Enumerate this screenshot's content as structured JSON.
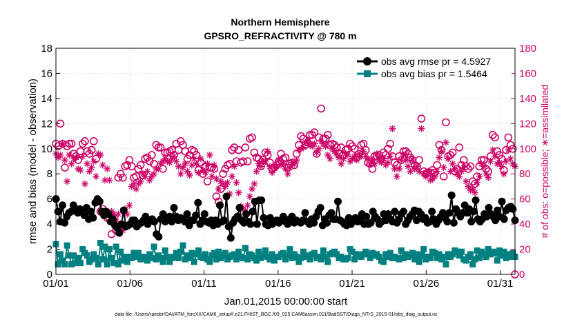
{
  "chart_data": {
    "type": "line",
    "title": "Northern Hemisphere",
    "subtitle": "GPSRO_REFRACTIVITY @ 780 m",
    "xlabel": "Jan.01,2015 00:00:00 start",
    "ylabel": "rmse and bias (model - observation)",
    "ylabel_right": "# of obs: o=possible; ∗=assimilated",
    "ylim": [
      0,
      18
    ],
    "ylim_right": [
      0,
      180
    ],
    "xlim": [
      0,
      31
    ],
    "yticks": [
      "0",
      "2",
      "4",
      "6",
      "8",
      "10",
      "12",
      "14",
      "16",
      "18"
    ],
    "yticks_right": [
      "0",
      "20",
      "40",
      "60",
      "80",
      "100",
      "120",
      "140",
      "160",
      "180"
    ],
    "xticks": [
      {
        "day": 0,
        "label": "01/01"
      },
      {
        "day": 5,
        "label": "01/06"
      },
      {
        "day": 10,
        "label": "01/11"
      },
      {
        "day": 15,
        "label": "01/16"
      },
      {
        "day": 20,
        "label": "01/21"
      },
      {
        "day": 25,
        "label": "01/26"
      },
      {
        "day": 30,
        "label": "01/31"
      }
    ],
    "grid": true,
    "legend_position": "top-right",
    "series": [
      {
        "name": "obs avg rmse pr = 4.5927",
        "color": "#000000",
        "marker": "circle",
        "axis": "left",
        "values": [
          6.0,
          5.0,
          4.2,
          5.5,
          4.1,
          4.6,
          4.9,
          5.0,
          5.5,
          5.2,
          4.9,
          5.2,
          5.0,
          4.7,
          5.3,
          4.4,
          5.0,
          4.5,
          5.7,
          6.0,
          5.8,
          5.0,
          4.7,
          5.0,
          4.8,
          4.2,
          4.4,
          3.9,
          3.7,
          3.3,
          4.0,
          5.1,
          3.8,
          3.9,
          4.0,
          4.3,
          4.3,
          3.8,
          4.0,
          4.1,
          4.3,
          4.6,
          4.0,
          4.3,
          4.4,
          4.2,
          3.2,
          3.0,
          4.4,
          4.8,
          4.2,
          4.5,
          4.6,
          4.2,
          5.3,
          4.6,
          4.3,
          4.5,
          4.4,
          4.2,
          4.8,
          3.9,
          4.3,
          4.3,
          4.7,
          5.7,
          4.0,
          4.3,
          4.8,
          4.2,
          4.1,
          4.3,
          3.9,
          4.3,
          4.0,
          5.5,
          4.2,
          4.3,
          6.2,
          3.8,
          2.9,
          4.1,
          4.4,
          4.6,
          5.3,
          4.3,
          4.1,
          4.8,
          4.2,
          4.0,
          5.0,
          5.8,
          4.0,
          5.9,
          5.9,
          4.5,
          4.0,
          3.9,
          4.5,
          4.0,
          4.2,
          4.3,
          4.1,
          4.3,
          4.6,
          4.2,
          4.0,
          4.4,
          4.6,
          4.1,
          4.3,
          4.2,
          4.1,
          4.3,
          4.9,
          4.2,
          4.0,
          4.4,
          4.1,
          4.6,
          5.0,
          5.3,
          3.9,
          4.4,
          4.1,
          4.7,
          4.9,
          4.4,
          4.4,
          5.8,
          4.3,
          4.2,
          4.0,
          3.9,
          4.5,
          4.0,
          4.4,
          4.5,
          4.2,
          4.4,
          4.8,
          4.0,
          4.6,
          4.0,
          4.1,
          5.0,
          4.6,
          4.4,
          4.0,
          4.2,
          4.8,
          4.3,
          4.8,
          4.4,
          4.2,
          5.0,
          4.1,
          4.4,
          4.8,
          5.0,
          4.0,
          4.3,
          4.6,
          4.8,
          5.1,
          4.3,
          5.0,
          4.8,
          4.4,
          4.5,
          4.1,
          4.2,
          5.0,
          4.4,
          4.0,
          4.3,
          4.6,
          4.9,
          4.5,
          4.2,
          4.9,
          6.3,
          4.1,
          5.2,
          4.9,
          4.6,
          4.9,
          5.5,
          4.9,
          5.2,
          4.2,
          5.0,
          5.9,
          4.4,
          4.2,
          4.4,
          4.8,
          4.6,
          5.3,
          4.8,
          4.6,
          4.3,
          5.1,
          4.6,
          5.8,
          4.4,
          5.1,
          5.3,
          5.4,
          5.2,
          4.3
        ]
      },
      {
        "name": "obs avg bias pr = 1.5464",
        "color": "#008080",
        "marker": "square",
        "axis": "left",
        "values": [
          2.4,
          0.8,
          1.6,
          1.1,
          0.8,
          2.3,
          1.5,
          0.8,
          1.5,
          0.9,
          1.3,
          0.9,
          2.0,
          1.7,
          1.5,
          1.0,
          1.2,
          1.6,
          1.3,
          0.8,
          2.5,
          1.2,
          2.2,
          0.8,
          2.0,
          1.3,
          0.9,
          2.2,
          0.8,
          1.8,
          1.1,
          1.4,
          1.0,
          1.4,
          1.3,
          1.7,
          1.4,
          1.7,
          1.2,
          1.4,
          1.3,
          1.1,
          1.6,
          1.3,
          2.2,
          1.2,
          1.5,
          1.3,
          1.0,
          1.9,
          1.4,
          1.0,
          1.3,
          1.4,
          1.7,
          1.3,
          1.8,
          2.3,
          1.2,
          1.5,
          1.3,
          1.7,
          1.0,
          1.6,
          1.9,
          1.4,
          1.3,
          1.6,
          1.2,
          1.0,
          1.5,
          1.7,
          1.2,
          1.8,
          1.3,
          1.5,
          1.7,
          1.2,
          1.4,
          1.5,
          1.6,
          1.2,
          1.8,
          1.4,
          1.3,
          2.1,
          1.2,
          1.6,
          1.5,
          1.3,
          1.1,
          1.8,
          1.3,
          1.5,
          1.9,
          1.4,
          1.2,
          1.6,
          1.1,
          1.4,
          1.4,
          1.6,
          1.7,
          1.2,
          1.5,
          2.0,
          1.3,
          1.6,
          1.4,
          1.0,
          1.3,
          1.8,
          1.4,
          1.5,
          1.2,
          1.6,
          1.7,
          1.3,
          1.4,
          1.2,
          1.9,
          1.4,
          1.0,
          1.6,
          1.7,
          1.8,
          1.6,
          1.3,
          1.4,
          1.2,
          1.2,
          1.3,
          2.0,
          1.8,
          1.2,
          1.6,
          1.5,
          1.4,
          1.6,
          1.8,
          1.6,
          1.3,
          1.7,
          1.5,
          1.6,
          1.4,
          1.1,
          1.0,
          1.6,
          1.4,
          1.7,
          1.3,
          1.4,
          1.3,
          1.2,
          1.9,
          1.3,
          1.6,
          1.4,
          1.5,
          1.7,
          1.2,
          1.6,
          1.0,
          1.5,
          2.0,
          1.2,
          1.4,
          1.3,
          1.8,
          1.7,
          1.3,
          1.6,
          1.2,
          1.4,
          0.8,
          1.6,
          1.4,
          1.6,
          1.9,
          1.8,
          1.5,
          1.8,
          1.2,
          1.1,
          1.4,
          1.6,
          0.8,
          1.2,
          1.9,
          1.3,
          1.8,
          1.6,
          1.4,
          2.0,
          1.6,
          1.8,
          1.7,
          1.1,
          1.9,
          1.5,
          1.8,
          1.3,
          1.6,
          1.4,
          1.7,
          1.4
        ]
      },
      {
        "name": "possible",
        "color": "#cc0066",
        "marker": "open-circle",
        "axis": "right",
        "values": [
          104,
          102,
          120,
          104,
          85,
          102,
          104,
          104,
          96,
          94,
          91,
          98,
          104,
          106,
          98,
          96,
          99,
          106,
          92,
          58,
          50,
          52,
          49,
          45,
          45,
          32,
          45,
          35,
          77,
          80,
          77,
          86,
          87,
          91,
          86,
          77,
          78,
          84,
          87,
          79,
          92,
          93,
          90,
          95,
          88,
          103,
          101,
          101,
          84,
          97,
          97,
          98,
          99,
          95,
          104,
          99,
          106,
          103,
          98,
          92,
          95,
          99,
          98,
          95,
          83,
          89,
          80,
          86,
          74,
          85,
          85,
          84,
          62,
          58,
          68,
          80,
          84,
          87,
          88,
          99,
          101,
          90,
          99,
          89,
          90,
          101,
          90,
          108,
          109,
          97,
          93,
          92,
          86,
          91,
          97,
          95,
          89,
          84,
          85,
          87,
          90,
          96,
          92,
          93,
          85,
          88,
          89,
          87,
          96,
          103,
          110,
          108,
          103,
          105,
          111,
          111,
          113,
          96,
          109,
          132,
          108,
          108,
          111,
          103,
          104,
          103,
          101,
          96,
          101,
          95,
          99,
          100,
          104,
          102,
          100,
          93,
          96,
          103,
          104,
          99,
          89,
          88,
          84,
          94,
          94,
          95,
          92,
          97,
          95,
          100,
          104,
          94,
          89,
          87,
          94,
          91,
          98,
          98,
          96,
          93,
          91,
          87,
          86,
          91,
          124,
          82,
          80,
          81,
          81,
          83,
          81,
          87,
          103,
          99,
          78,
          121,
          94,
          95,
          97,
          82,
          84,
          101,
          87,
          91,
          86,
          84,
          86,
          74,
          72,
          78,
          86,
          91,
          91,
          84,
          82,
          94,
          111,
          109,
          98,
          95,
          92,
          83,
          99,
          109,
          103,
          100,
          0
        ]
      },
      {
        "name": "assimilated",
        "color": "#cc0066",
        "marker": "asterisk",
        "axis": "right",
        "values": [
          96,
          93,
          95,
          104,
          91,
          74,
          95,
          88,
          92,
          93,
          84,
          83,
          94,
          72,
          88,
          82,
          85,
          90,
          78,
          96,
          95,
          87,
          75,
          84,
          75,
          50,
          48,
          42,
          48,
          38,
          35,
          52,
          48,
          55,
          70,
          72,
          68,
          72,
          74,
          80,
          78,
          82,
          75,
          78,
          80,
          84,
          84,
          88,
          90,
          92,
          90,
          89,
          92,
          94,
          90,
          86,
          80,
          85,
          88,
          82,
          79,
          87,
          92,
          88,
          81,
          92,
          83,
          81,
          88,
          95,
          78,
          87,
          76,
          68,
          74,
          72,
          70,
          73,
          64,
          78,
          86,
          73,
          65,
          54,
          52,
          50,
          55,
          62,
          68,
          72,
          82,
          88,
          86,
          90,
          90,
          98,
          86,
          81,
          85,
          86,
          91,
          87,
          88,
          84,
          80,
          85,
          89,
          88,
          91,
          99,
          100,
          101,
          105,
          106,
          103,
          102,
          104,
          97,
          100,
          106,
          104,
          102,
          95,
          92,
          100,
          98,
          96,
          93,
          88,
          92,
          96,
          95,
          90,
          92,
          94,
          91,
          96,
          94,
          98,
          94,
          92,
          88,
          91,
          88,
          96,
          91,
          89,
          92,
          87,
          89,
          94,
          116,
          84,
          78,
          84,
          91,
          95,
          91,
          86,
          82,
          91,
          84,
          86,
          82,
          116,
          80,
          78,
          82,
          75,
          76,
          78,
          82,
          93,
          98,
          85,
          105,
          92,
          82,
          88,
          84,
          80,
          78,
          82,
          85,
          74,
          70,
          67,
          68,
          65,
          73,
          78,
          88,
          86,
          80,
          77,
          90,
          99,
          94,
          88,
          89,
          86,
          80,
          90,
          99,
          92,
          88,
          86
        ]
      }
    ],
    "footnote": "data file: /Users/raeder/DAI/ATM_forcXX/CAM6_setup/f.e21.FHIST_BGC.f09_025.CAM6assim.011/BadSST/Diags_NTrS_2015-01/obs_diag_output.nc"
  }
}
